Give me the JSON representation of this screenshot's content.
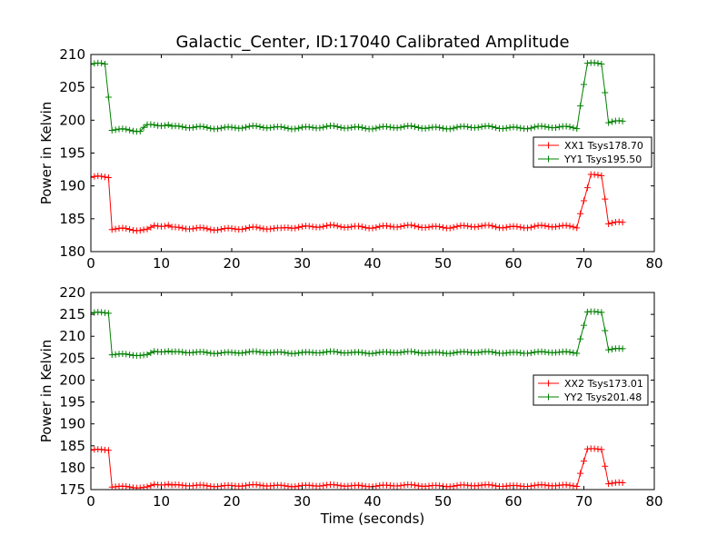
{
  "title": "Galactic_Center, ID:17040 Calibrated Amplitude",
  "colors": {
    "xx": "#ff0000",
    "yy": "#008000"
  },
  "chart_data": [
    {
      "type": "line",
      "marker": "+",
      "xlabel": "",
      "ylabel": "Power in Kelvin",
      "xlim": [
        0,
        80
      ],
      "ylim": [
        180,
        210
      ],
      "xticks": [
        "0",
        "10",
        "20",
        "30",
        "40",
        "50",
        "60",
        "70",
        "80"
      ],
      "yticks": [
        "180",
        "185",
        "190",
        "195",
        "200",
        "205",
        "210"
      ],
      "grid": false,
      "legend_position": "right",
      "series": [
        {
          "name": "XX1 Tsys178.70",
          "color": "#ff0000",
          "segments": [
            {
              "x0": 0,
              "x1": 2.5,
              "y": 191.3
            },
            {
              "x0": 3,
              "x1": 8,
              "y": 183.4
            },
            {
              "x0": 9,
              "x1": 11,
              "y": 184.0
            },
            {
              "x0": 12,
              "x1": 27,
              "y": 183.5
            },
            {
              "x0": 28,
              "x1": 69,
              "y": 183.8
            },
            {
              "x0": 71,
              "x1": 72.5,
              "y": 191.7
            },
            {
              "x0": 73.5,
              "x1": 75.5,
              "y": 184.3
            }
          ]
        },
        {
          "name": "YY1 Tsys195.50",
          "color": "#008000",
          "segments": [
            {
              "x0": 0,
              "x1": 2,
              "y": 208.5
            },
            {
              "x0": 3,
              "x1": 7,
              "y": 198.5
            },
            {
              "x0": 8,
              "x1": 11,
              "y": 199.3
            },
            {
              "x0": 12,
              "x1": 69,
              "y": 198.9
            },
            {
              "x0": 70.5,
              "x1": 72.5,
              "y": 208.7
            },
            {
              "x0": 73.5,
              "x1": 75.5,
              "y": 199.7
            }
          ]
        }
      ]
    },
    {
      "type": "line",
      "marker": "+",
      "xlabel": "Time (seconds)",
      "ylabel": "Power in Kelvin",
      "xlim": [
        0,
        80
      ],
      "ylim": [
        175,
        220
      ],
      "xticks": [
        "0",
        "10",
        "20",
        "30",
        "40",
        "50",
        "60",
        "70",
        "80"
      ],
      "yticks": [
        "175",
        "180",
        "185",
        "190",
        "195",
        "200",
        "205",
        "210",
        "215",
        "220"
      ],
      "grid": false,
      "legend_position": "right",
      "series": [
        {
          "name": "XX2 Tsys173.01",
          "color": "#ff0000",
          "segments": [
            {
              "x0": 0,
              "x1": 2.5,
              "y": 184.0
            },
            {
              "x0": 3,
              "x1": 8,
              "y": 175.6
            },
            {
              "x0": 9,
              "x1": 11,
              "y": 176.2
            },
            {
              "x0": 12,
              "x1": 69,
              "y": 175.9
            },
            {
              "x0": 70.5,
              "x1": 72.5,
              "y": 184.3
            },
            {
              "x0": 73.5,
              "x1": 75.5,
              "y": 176.4
            }
          ]
        },
        {
          "name": "YY2 Tsys201.48",
          "color": "#008000",
          "segments": [
            {
              "x0": 0,
              "x1": 2.5,
              "y": 215.3
            },
            {
              "x0": 3,
              "x1": 8,
              "y": 205.8
            },
            {
              "x0": 9,
              "x1": 11,
              "y": 206.6
            },
            {
              "x0": 12,
              "x1": 69,
              "y": 206.3
            },
            {
              "x0": 70.5,
              "x1": 72.5,
              "y": 215.6
            },
            {
              "x0": 73.5,
              "x1": 75.5,
              "y": 207.0
            }
          ]
        }
      ]
    }
  ]
}
